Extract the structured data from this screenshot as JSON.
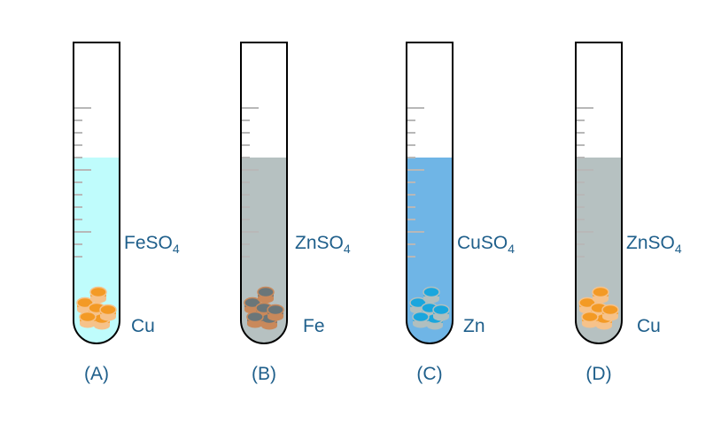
{
  "tubes": [
    {
      "id": "A",
      "caption": "(A)",
      "solution": "FeSO",
      "subscript": "4",
      "metal": "Cu",
      "liquid_color": "#bffcfc",
      "piece_fill": "#f39a25",
      "piece_rim": "#f6c28a"
    },
    {
      "id": "B",
      "caption": "(B)",
      "solution": "ZnSO",
      "subscript": "4",
      "metal": "Fe",
      "liquid_color": "#b6c1c1",
      "piece_fill": "#6a7679",
      "piece_rim": "#c9895b"
    },
    {
      "id": "C",
      "caption": "(C)",
      "solution": "CuSO",
      "subscript": "4",
      "metal": "Zn",
      "liquid_color": "#6fb5e6",
      "piece_fill": "#1aa6dd",
      "piece_rim": "#b0bfbf"
    },
    {
      "id": "D",
      "caption": "(D)",
      "solution": "ZnSO",
      "subscript": "4",
      "metal": "Cu",
      "liquid_color": "#b6c1c1",
      "piece_fill": "#f39a25",
      "piece_rim": "#f6c28a"
    }
  ],
  "colors": {
    "text": "#1f5f8b",
    "outline": "#000000",
    "tick": "#b8b8b8"
  }
}
